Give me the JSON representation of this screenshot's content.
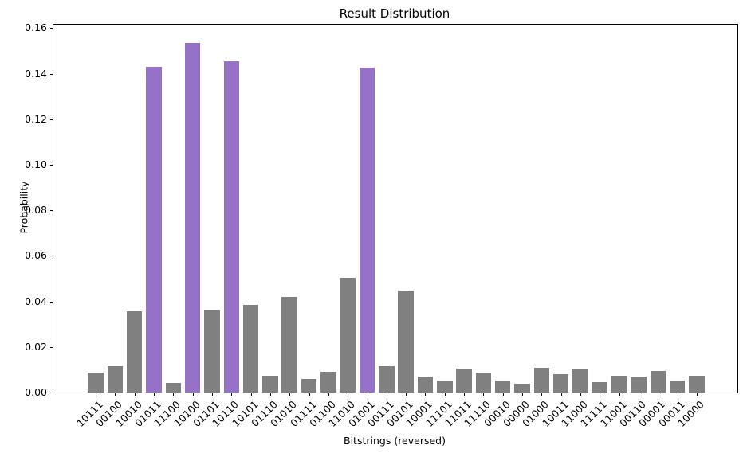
{
  "chart_data": {
    "type": "bar",
    "title": "Result Distribution",
    "xlabel": "Bitstrings (reversed)",
    "ylabel": "Probability",
    "categories": [
      "10111",
      "00100",
      "10010",
      "01011",
      "11100",
      "10100",
      "01101",
      "10110",
      "10101",
      "01110",
      "01010",
      "01111",
      "01100",
      "11010",
      "01001",
      "00111",
      "00101",
      "10001",
      "11101",
      "11011",
      "11110",
      "00010",
      "00000",
      "01000",
      "10011",
      "11000",
      "11111",
      "11001",
      "00110",
      "00001",
      "00011",
      "10000"
    ],
    "values": [
      0.0088,
      0.0116,
      0.0358,
      0.143,
      0.0043,
      0.1533,
      0.0364,
      0.1455,
      0.0384,
      0.0074,
      0.0421,
      0.0061,
      0.0092,
      0.0502,
      0.1427,
      0.0116,
      0.0447,
      0.0071,
      0.0054,
      0.0106,
      0.0089,
      0.0051,
      0.004,
      0.0107,
      0.008,
      0.0101,
      0.0045,
      0.0072,
      0.0069,
      0.0095,
      0.0052,
      0.0073
    ],
    "highlighted_categories": [
      "01011",
      "10100",
      "10110",
      "01001"
    ],
    "bar_color": "#808080",
    "highlight_color": "#9572C8",
    "axis_color": "#000000",
    "yticks": [
      0.0,
      0.02,
      0.04,
      0.06,
      0.08,
      0.1,
      0.12,
      0.14,
      0.16
    ],
    "ylim": [
      0,
      0.1615
    ],
    "x_tick_rotation_deg": 45,
    "grid": false,
    "legend": null
  }
}
